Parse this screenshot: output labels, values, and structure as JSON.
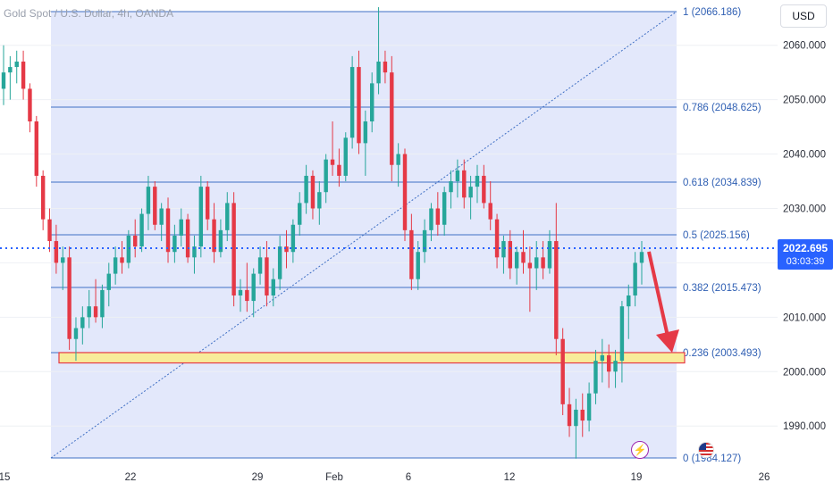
{
  "header": {
    "symbol_title": "Gold Spot / U.S. Dollar, 4h, OANDA",
    "currency_label": "USD"
  },
  "price_tag": {
    "price": "2022.695",
    "countdown": "03:03:39"
  },
  "colors": {
    "up": "#26a69a",
    "down": "#e53946",
    "fib_line": "#3f6fc4",
    "fib_fill": "#e3e8fb",
    "support_zone": "#f8ec9a",
    "support_border": "#e53946",
    "arrow": "#e53946",
    "current_price_line": "#2962ff"
  },
  "chart_data": {
    "type": "candlestick",
    "title": "Gold Spot / U.S. Dollar, 4h, OANDA",
    "y_axis": {
      "ticks": [
        1990,
        2000,
        2010,
        2020,
        2030,
        2040,
        2050,
        2060
      ],
      "tick_labels": [
        "1990.000",
        "2000.000",
        "2010.000",
        "2020.000",
        "2030.000",
        "2040.000",
        "2050.000",
        "2060.000"
      ],
      "range": [
        1984,
        2068
      ],
      "unit": "USD"
    },
    "x_axis": {
      "tick_labels": [
        "15",
        "22",
        "29",
        "Feb",
        "6",
        "12",
        "19",
        "26"
      ]
    },
    "current_price": 2022.695,
    "fibonacci_retracement": {
      "levels": [
        {
          "ratio": "1",
          "price": 2066.186,
          "label": "1 (2066.186)"
        },
        {
          "ratio": "0.786",
          "price": 2048.625,
          "label": "0.786 (2048.625)"
        },
        {
          "ratio": "0.618",
          "price": 2034.839,
          "label": "0.618 (2034.839)"
        },
        {
          "ratio": "0.5",
          "price": 2025.156,
          "label": "0.5 (2025.156)"
        },
        {
          "ratio": "0.382",
          "price": 2015.473,
          "label": "0.382 (2015.473)"
        },
        {
          "ratio": "0.236",
          "price": 2003.493,
          "label": "0.236 (2003.493)"
        },
        {
          "ratio": "0",
          "price": 1984.127,
          "label": "0 (1984.127)"
        }
      ]
    },
    "support_zone": {
      "low": 2001.6,
      "high": 2003.5
    },
    "projection_arrow": {
      "from": 2022.7,
      "to": 2003.5
    },
    "candles": [
      [
        2052,
        2060,
        2049,
        2055
      ],
      [
        2055,
        2058,
        2050,
        2056
      ],
      [
        2056,
        2059,
        2053,
        2057
      ],
      [
        2057,
        2059,
        2050,
        2052
      ],
      [
        2052,
        2053,
        2044,
        2046
      ],
      [
        2046,
        2047,
        2034,
        2036
      ],
      [
        2036,
        2037,
        2026,
        2028
      ],
      [
        2028,
        2030,
        2022,
        2024
      ],
      [
        2024,
        2027,
        2018,
        2020
      ],
      [
        2020,
        2023,
        2015,
        2021
      ],
      [
        2021,
        2023,
        2004,
        2006
      ],
      [
        2006,
        2010,
        2002,
        2008
      ],
      [
        2008,
        2012,
        2005,
        2010
      ],
      [
        2010,
        2015,
        2008,
        2012
      ],
      [
        2012,
        2017,
        2009,
        2010
      ],
      [
        2010,
        2016,
        2008,
        2015
      ],
      [
        2015,
        2020,
        2012,
        2018
      ],
      [
        2018,
        2023,
        2016,
        2021
      ],
      [
        2021,
        2024,
        2018,
        2020
      ],
      [
        2020,
        2026,
        2019,
        2025
      ],
      [
        2025,
        2028,
        2021,
        2023
      ],
      [
        2023,
        2030,
        2022,
        2029
      ],
      [
        2029,
        2036,
        2026,
        2034
      ],
      [
        2034,
        2035,
        2026,
        2027
      ],
      [
        2027,
        2031,
        2024,
        2030
      ],
      [
        2030,
        2032,
        2020,
        2022
      ],
      [
        2022,
        2027,
        2020,
        2025
      ],
      [
        2025,
        2030,
        2023,
        2028
      ],
      [
        2028,
        2029,
        2020,
        2021
      ],
      [
        2021,
        2025,
        2018,
        2023
      ],
      [
        2023,
        2036,
        2021,
        2034
      ],
      [
        2034,
        2035,
        2026,
        2028
      ],
      [
        2028,
        2031,
        2020,
        2022
      ],
      [
        2022,
        2028,
        2021,
        2026
      ],
      [
        2026,
        2033,
        2024,
        2031
      ],
      [
        2031,
        2033,
        2012,
        2014
      ],
      [
        2014,
        2017,
        2011,
        2015
      ],
      [
        2015,
        2020,
        2011,
        2013
      ],
      [
        2013,
        2019,
        2010,
        2018
      ],
      [
        2018,
        2023,
        2016,
        2021
      ],
      [
        2021,
        2024,
        2012,
        2014
      ],
      [
        2014,
        2019,
        2012,
        2017
      ],
      [
        2017,
        2025,
        2015,
        2023
      ],
      [
        2023,
        2026,
        2019,
        2022
      ],
      [
        2022,
        2028,
        2020,
        2027
      ],
      [
        2027,
        2033,
        2025,
        2031
      ],
      [
        2031,
        2038,
        2029,
        2036
      ],
      [
        2036,
        2037,
        2028,
        2030
      ],
      [
        2030,
        2035,
        2027,
        2033
      ],
      [
        2033,
        2040,
        2031,
        2039
      ],
      [
        2039,
        2046,
        2036,
        2038
      ],
      [
        2038,
        2041,
        2034,
        2036
      ],
      [
        2036,
        2044,
        2035,
        2043
      ],
      [
        2043,
        2058,
        2041,
        2056
      ],
      [
        2056,
        2059,
        2040,
        2042
      ],
      [
        2042,
        2048,
        2036,
        2046
      ],
      [
        2046,
        2055,
        2044,
        2053
      ],
      [
        2053,
        2067,
        2051,
        2057
      ],
      [
        2057,
        2059,
        2053,
        2055
      ],
      [
        2055,
        2058,
        2035,
        2038
      ],
      [
        2038,
        2042,
        2034,
        2040
      ],
      [
        2040,
        2041,
        2024,
        2026
      ],
      [
        2026,
        2029,
        2015,
        2017
      ],
      [
        2017,
        2024,
        2015,
        2022
      ],
      [
        2022,
        2028,
        2020,
        2026
      ],
      [
        2026,
        2031,
        2024,
        2030
      ],
      [
        2030,
        2033,
        2025,
        2027
      ],
      [
        2027,
        2034,
        2025,
        2033
      ],
      [
        2033,
        2037,
        2030,
        2035
      ],
      [
        2035,
        2039,
        2032,
        2037
      ],
      [
        2037,
        2039,
        2030,
        2032
      ],
      [
        2032,
        2036,
        2028,
        2034
      ],
      [
        2034,
        2038,
        2031,
        2036
      ],
      [
        2036,
        2038,
        2030,
        2031
      ],
      [
        2031,
        2035,
        2026,
        2028
      ],
      [
        2028,
        2029,
        2019,
        2021
      ],
      [
        2021,
        2025,
        2018,
        2024
      ],
      [
        2024,
        2026,
        2017,
        2019
      ],
      [
        2019,
        2023,
        2016,
        2022
      ],
      [
        2022,
        2026,
        2018,
        2020
      ],
      [
        2020,
        2023,
        2011,
        2019
      ],
      [
        2019,
        2024,
        2015,
        2021
      ],
      [
        2021,
        2024,
        2017,
        2019
      ],
      [
        2019,
        2026,
        2018,
        2024
      ],
      [
        2024,
        2031,
        2003,
        2006
      ],
      [
        2006,
        2008,
        1992,
        1994
      ],
      [
        1994,
        1997,
        1988,
        1990
      ],
      [
        1990,
        1995,
        1984,
        1993
      ],
      [
        1993,
        1996,
        1988,
        1991
      ],
      [
        1991,
        1998,
        1989,
        1996
      ],
      [
        1996,
        2004,
        1994,
        2002
      ],
      [
        2002,
        2006,
        1998,
        2003
      ],
      [
        2003,
        2005,
        1997,
        2000
      ],
      [
        2000,
        2004,
        1997,
        2002
      ],
      [
        2002,
        2013,
        1998,
        2012
      ],
      [
        2012,
        2016,
        2006,
        2014
      ],
      [
        2014,
        2022,
        2012,
        2020
      ],
      [
        2020,
        2024,
        2016,
        2022
      ]
    ]
  }
}
